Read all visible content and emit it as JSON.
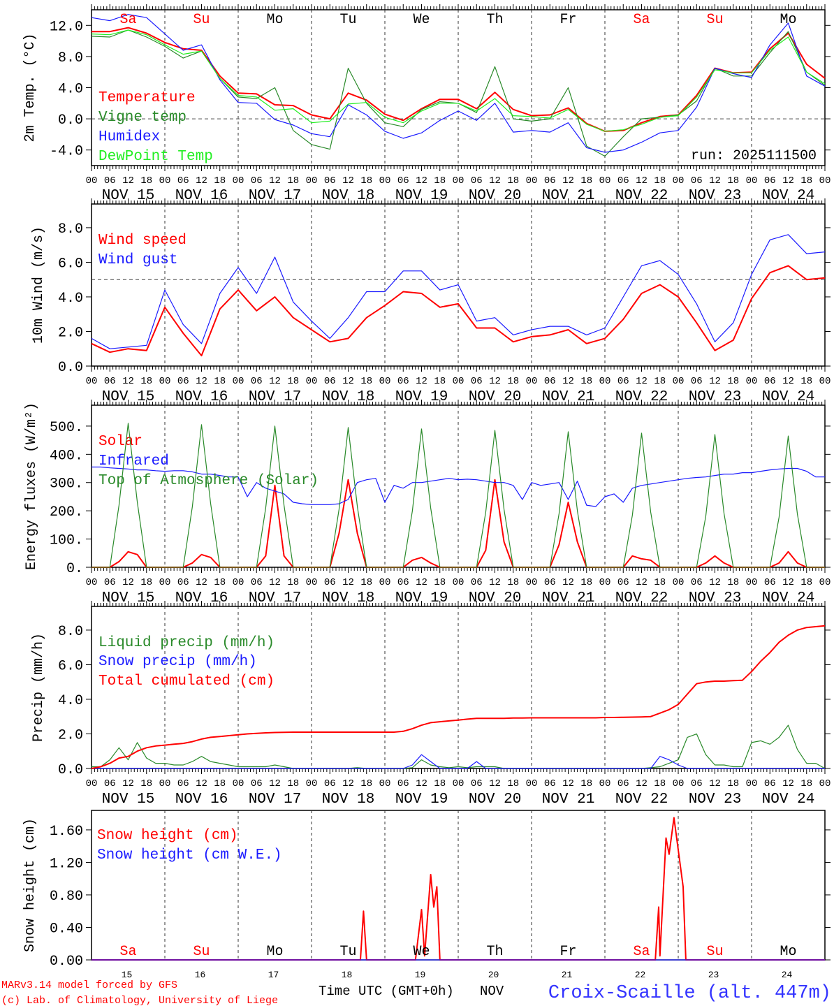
{
  "station": "Croix-Scaille (alt. 447m)",
  "credit": [
    "MARv3.14 model forced by GFS",
    "(c) Lab. of Climatology, University of Liege"
  ],
  "time_axis": {
    "label": "Time UTC (GMT+0h)",
    "month": "NOV",
    "hour_labels": [
      "00",
      "06",
      "12",
      "18"
    ],
    "dates": [
      "NOV 15",
      "NOV 16",
      "NOV 17",
      "NOV 18",
      "NOV 19",
      "NOV 20",
      "NOV 21",
      "NOV 22",
      "NOV 23",
      "NOV 24"
    ],
    "day_numbers": [
      "15",
      "16",
      "17",
      "18",
      "19",
      "20",
      "21",
      "22",
      "23",
      "24"
    ],
    "weekdays": [
      "Sa",
      "Su",
      "Mo",
      "Tu",
      "We",
      "Th",
      "Fr",
      "Sa",
      "Su",
      "Mo"
    ],
    "range_hours": [
      0,
      240
    ]
  },
  "colors": {
    "red": "#ff0000",
    "dark_green": "#2a8a2a",
    "blue": "#1a1aff",
    "light_green": "#22ee22",
    "weekend": "#ff0000",
    "weekday": "#000000",
    "station": "#3333ff"
  },
  "chart_data": [
    {
      "type": "line",
      "ylabel": "2m Temp. (°C)",
      "ylim": [
        -6,
        14
      ],
      "yticks": {
        "values": [
          -4,
          0,
          4,
          8,
          12
        ],
        "labels": [
          "-4.0",
          "0.0",
          "4.0",
          "8.0",
          "12.0"
        ]
      },
      "refline": 0,
      "annotation": "run: 2025111500",
      "series": [
        {
          "name": "Temperature",
          "color": "#ff0000",
          "step_h": 6,
          "values": [
            11.2,
            11.2,
            11.7,
            11.0,
            9.8,
            9.0,
            8.8,
            5.5,
            3.3,
            3.2,
            1.8,
            1.7,
            0.5,
            0.0,
            3.3,
            2.4,
            0.6,
            -0.2,
            1.3,
            2.5,
            2.5,
            1.3,
            3.4,
            1.2,
            0.4,
            0.5,
            1.4,
            -0.6,
            -1.6,
            -1.5,
            -0.5,
            0.3,
            0.5,
            3.0,
            6.5,
            5.9,
            6.0,
            9.0,
            11.0,
            7.0,
            5.2
          ]
        },
        {
          "name": "Vigne temp",
          "color": "#2a8a2a",
          "step_h": 6,
          "values": [
            10.6,
            10.5,
            11.4,
            10.5,
            9.3,
            7.8,
            8.7,
            5.2,
            2.8,
            2.6,
            4.0,
            -1.5,
            -3.3,
            -3.9,
            6.5,
            2.0,
            -0.5,
            -1.0,
            1.2,
            2.2,
            2.0,
            0.8,
            6.7,
            0.0,
            -0.3,
            0.0,
            4.0,
            -3.5,
            -4.8,
            -2.3,
            0.0,
            0.2,
            0.5,
            2.3,
            6.5,
            5.5,
            5.5,
            8.5,
            11.2,
            6.0,
            4.3
          ]
        },
        {
          "name": "Humidex",
          "color": "#1a1aff",
          "step_h": 6,
          "values": [
            13.0,
            12.6,
            13.4,
            13.0,
            10.9,
            8.8,
            9.5,
            5.0,
            2.1,
            2.0,
            -0.1,
            -0.8,
            -1.9,
            -2.3,
            1.8,
            0.5,
            -1.6,
            -2.5,
            -1.8,
            -0.2,
            1.0,
            -0.2,
            2.0,
            -1.7,
            -1.5,
            -1.7,
            -0.5,
            -3.7,
            -4.3,
            -4.0,
            -3.0,
            -1.8,
            -1.5,
            1.5,
            6.5,
            5.8,
            5.3,
            9.5,
            12.3,
            5.5,
            4.2
          ]
        },
        {
          "name": "DewPoint Temp",
          "color": "#22ee22",
          "step_h": 6,
          "values": [
            10.9,
            10.8,
            11.4,
            10.8,
            9.5,
            8.3,
            8.7,
            5.2,
            3.0,
            2.8,
            1.1,
            1.3,
            -0.5,
            -0.3,
            1.9,
            2.1,
            0.2,
            -0.5,
            1.0,
            2.0,
            2.0,
            1.0,
            2.6,
            0.4,
            0.3,
            0.1,
            1.2,
            -0.7,
            -1.6,
            -1.4,
            -0.7,
            0.2,
            0.4,
            2.8,
            6.3,
            5.9,
            5.9,
            8.8,
            10.5,
            6.0,
            4.5
          ]
        }
      ]
    },
    {
      "type": "line",
      "ylabel": "10m Wind (m/s)",
      "ylim": [
        0,
        9.37
      ],
      "yticks": {
        "values": [
          0,
          2,
          4,
          6,
          8
        ],
        "labels": [
          "0.0",
          "2.0",
          "4.0",
          "6.0",
          "8.0"
        ]
      },
      "refline": 5,
      "series": [
        {
          "name": "Wind speed",
          "color": "#ff0000",
          "step_h": 6,
          "values": [
            1.3,
            0.8,
            1.0,
            0.9,
            3.4,
            1.9,
            0.6,
            3.3,
            4.4,
            3.2,
            4.0,
            2.8,
            2.1,
            1.4,
            1.6,
            2.8,
            3.5,
            4.3,
            4.2,
            3.4,
            3.6,
            2.2,
            2.2,
            1.4,
            1.7,
            1.8,
            2.1,
            1.3,
            1.6,
            2.7,
            4.2,
            4.7,
            4.0,
            2.5,
            0.9,
            1.5,
            3.9,
            5.4,
            5.8,
            5.0,
            5.1
          ]
        },
        {
          "name": "Wind gust",
          "color": "#1a1aff",
          "step_h": 6,
          "values": [
            1.6,
            1.0,
            1.1,
            1.2,
            4.4,
            2.4,
            1.3,
            4.2,
            5.7,
            4.2,
            6.3,
            3.7,
            2.6,
            1.6,
            2.8,
            4.3,
            4.3,
            5.5,
            5.5,
            4.4,
            4.7,
            2.6,
            2.8,
            1.8,
            2.1,
            2.3,
            2.3,
            1.8,
            2.2,
            4.0,
            5.8,
            6.1,
            5.3,
            3.6,
            1.4,
            2.5,
            5.3,
            7.3,
            7.6,
            6.5,
            6.6
          ]
        }
      ]
    },
    {
      "type": "line",
      "ylabel": "Energy fluxes (W/m²)",
      "ylim": [
        0,
        574
      ],
      "yticks": {
        "values": [
          0,
          100,
          200,
          300,
          400,
          500
        ],
        "labels": [
          "0.",
          "100.",
          "200.",
          "300.",
          "400.",
          "500."
        ]
      },
      "series": [
        {
          "name": "Solar",
          "color": "#ff0000",
          "step_h": 3,
          "values": [
            0,
            0,
            0,
            20,
            55,
            45,
            0,
            0,
            0,
            0,
            0,
            15,
            45,
            35,
            0,
            0,
            0,
            0,
            0,
            40,
            290,
            40,
            0,
            0,
            0,
            0,
            0,
            120,
            310,
            120,
            0,
            0,
            0,
            0,
            0,
            25,
            35,
            15,
            0,
            0,
            0,
            0,
            0,
            60,
            310,
            90,
            0,
            0,
            0,
            0,
            0,
            80,
            230,
            90,
            0,
            0,
            0,
            0,
            0,
            40,
            30,
            25,
            0,
            0,
            0,
            0,
            0,
            15,
            40,
            15,
            0,
            0,
            0,
            0,
            0,
            15,
            55,
            15,
            0,
            0,
            0
          ]
        },
        {
          "name": "Infrared",
          "color": "#1a1aff",
          "step_h": 3,
          "values": [
            355,
            355,
            352,
            350,
            348,
            345,
            345,
            342,
            340,
            342,
            342,
            338,
            330,
            330,
            325,
            320,
            320,
            250,
            300,
            280,
            270,
            260,
            230,
            225,
            222,
            222,
            222,
            225,
            240,
            300,
            310,
            315,
            230,
            290,
            280,
            300,
            300,
            305,
            310,
            315,
            310,
            312,
            310,
            305,
            300,
            300,
            290,
            240,
            300,
            290,
            295,
            300,
            240,
            305,
            220,
            215,
            250,
            260,
            230,
            280,
            290,
            295,
            300,
            305,
            310,
            315,
            318,
            320,
            325,
            330,
            330,
            335,
            335,
            340,
            345,
            348,
            350,
            350,
            340,
            320,
            320
          ]
        },
        {
          "name": "Top of Atmosphere (Solar)",
          "color": "#2a8a2a",
          "step_h": 3,
          "values": [
            0,
            0,
            0,
            220,
            510,
            230,
            0,
            0,
            0,
            0,
            0,
            215,
            505,
            225,
            0,
            0,
            0,
            0,
            0,
            210,
            500,
            220,
            0,
            0,
            0,
            0,
            0,
            205,
            495,
            215,
            0,
            0,
            0,
            0,
            0,
            200,
            490,
            210,
            0,
            0,
            0,
            0,
            0,
            195,
            485,
            205,
            0,
            0,
            0,
            0,
            0,
            190,
            480,
            200,
            0,
            0,
            0,
            0,
            0,
            185,
            475,
            195,
            0,
            0,
            0,
            0,
            0,
            180,
            470,
            190,
            0,
            0,
            0,
            0,
            0,
            178,
            465,
            188,
            0,
            0,
            0
          ]
        }
      ]
    },
    {
      "type": "line",
      "ylabel": "Precip (mm/h)",
      "ylim": [
        0,
        9.37
      ],
      "yticks": {
        "values": [
          0,
          2,
          4,
          6,
          8
        ],
        "labels": [
          "0.0",
          "2.0",
          "4.0",
          "6.0",
          "8.0"
        ]
      },
      "series": [
        {
          "name": "Liquid precip (mm/h)",
          "color": "#2a8a2a",
          "step_h": 3,
          "values": [
            0.1,
            0.1,
            0.5,
            1.2,
            0.5,
            1.5,
            0.6,
            0.3,
            0.3,
            0.2,
            0.2,
            0.4,
            0.7,
            0.4,
            0.3,
            0.2,
            0.1,
            0.1,
            0.1,
            0.1,
            0.2,
            0.1,
            0,
            0,
            0,
            0,
            0,
            0,
            0,
            0.05,
            0,
            0,
            0,
            0,
            0,
            0.05,
            0.5,
            0.2,
            0.1,
            0.05,
            0.1,
            0.05,
            0.1,
            0.1,
            0.1,
            0,
            0,
            0,
            0,
            0,
            0,
            0,
            0,
            0,
            0,
            0,
            0,
            0,
            0,
            0,
            0,
            0.05,
            0.1,
            0.3,
            0.5,
            1.8,
            2.0,
            0.8,
            0.2,
            0.2,
            0.1,
            0.1,
            1.5,
            1.6,
            1.4,
            1.8,
            2.5,
            1.1,
            0.3,
            0.3,
            0
          ]
        },
        {
          "name": "Snow precip (mm/h)",
          "color": "#1a1aff",
          "step_h": 3,
          "values": [
            0,
            0,
            0,
            0,
            0,
            0,
            0,
            0,
            0,
            0,
            0,
            0,
            0,
            0,
            0,
            0,
            0,
            0,
            0,
            0,
            0,
            0,
            0,
            0,
            0,
            0,
            0,
            0,
            0,
            0,
            0,
            0,
            0,
            0,
            0,
            0.2,
            0.8,
            0.4,
            0,
            0,
            0,
            0,
            0.4,
            0,
            0,
            0,
            0,
            0,
            0,
            0,
            0,
            0,
            0,
            0,
            0,
            0,
            0,
            0,
            0,
            0,
            0,
            0,
            0.7,
            0.5,
            0.2,
            0,
            0,
            0,
            0,
            0,
            0,
            0,
            0,
            0,
            0,
            0,
            0,
            0,
            0,
            0,
            0
          ]
        },
        {
          "name": "Total cumulated (cm)",
          "color": "#ff0000",
          "step_h": 3,
          "values": [
            0,
            0.1,
            0.3,
            0.6,
            0.7,
            1.0,
            1.2,
            1.3,
            1.35,
            1.4,
            1.45,
            1.55,
            1.7,
            1.8,
            1.85,
            1.9,
            1.95,
            2.0,
            2.03,
            2.06,
            2.08,
            2.09,
            2.1,
            2.1,
            2.1,
            2.1,
            2.1,
            2.1,
            2.1,
            2.1,
            2.1,
            2.1,
            2.1,
            2.1,
            2.15,
            2.3,
            2.5,
            2.65,
            2.7,
            2.75,
            2.8,
            2.85,
            2.9,
            2.9,
            2.9,
            2.9,
            2.92,
            2.92,
            2.93,
            2.93,
            2.93,
            2.93,
            2.93,
            2.93,
            2.93,
            2.93,
            2.95,
            2.95,
            2.96,
            2.97,
            2.98,
            3.0,
            3.2,
            3.4,
            3.7,
            4.3,
            4.9,
            5.0,
            5.05,
            5.05,
            5.08,
            5.1,
            5.6,
            6.2,
            6.7,
            7.3,
            7.7,
            8.0,
            8.15,
            8.2,
            8.25
          ]
        }
      ]
    },
    {
      "type": "line",
      "ylabel": "Snow height (cm)",
      "ylim": [
        0,
        1.84
      ],
      "yticks": {
        "values": [
          0,
          0.4,
          0.8,
          1.2,
          1.6
        ],
        "labels": [
          "0.00",
          "0.40",
          "0.80",
          "1.20",
          "1.60"
        ]
      },
      "series": [
        {
          "name": "Snow height (cm)",
          "color": "#ff0000",
          "t": [
            0,
            88,
            89,
            90,
            106,
            108,
            109,
            111,
            112,
            113,
            114,
            184.5,
            185.6,
            186,
            188,
            189,
            190.6,
            193.6,
            194.5,
            240
          ],
          "values": [
            0,
            0,
            0.6,
            0,
            0,
            0.62,
            0.05,
            1.05,
            0.65,
            0.9,
            0,
            0,
            0.65,
            0.05,
            1.5,
            1.3,
            1.75,
            0.9,
            0,
            0
          ]
        },
        {
          "name": "Snow height (cm W.E.)",
          "color": "#1a1aff",
          "t": [
            0,
            240
          ],
          "values": [
            0,
            0
          ]
        }
      ]
    }
  ]
}
